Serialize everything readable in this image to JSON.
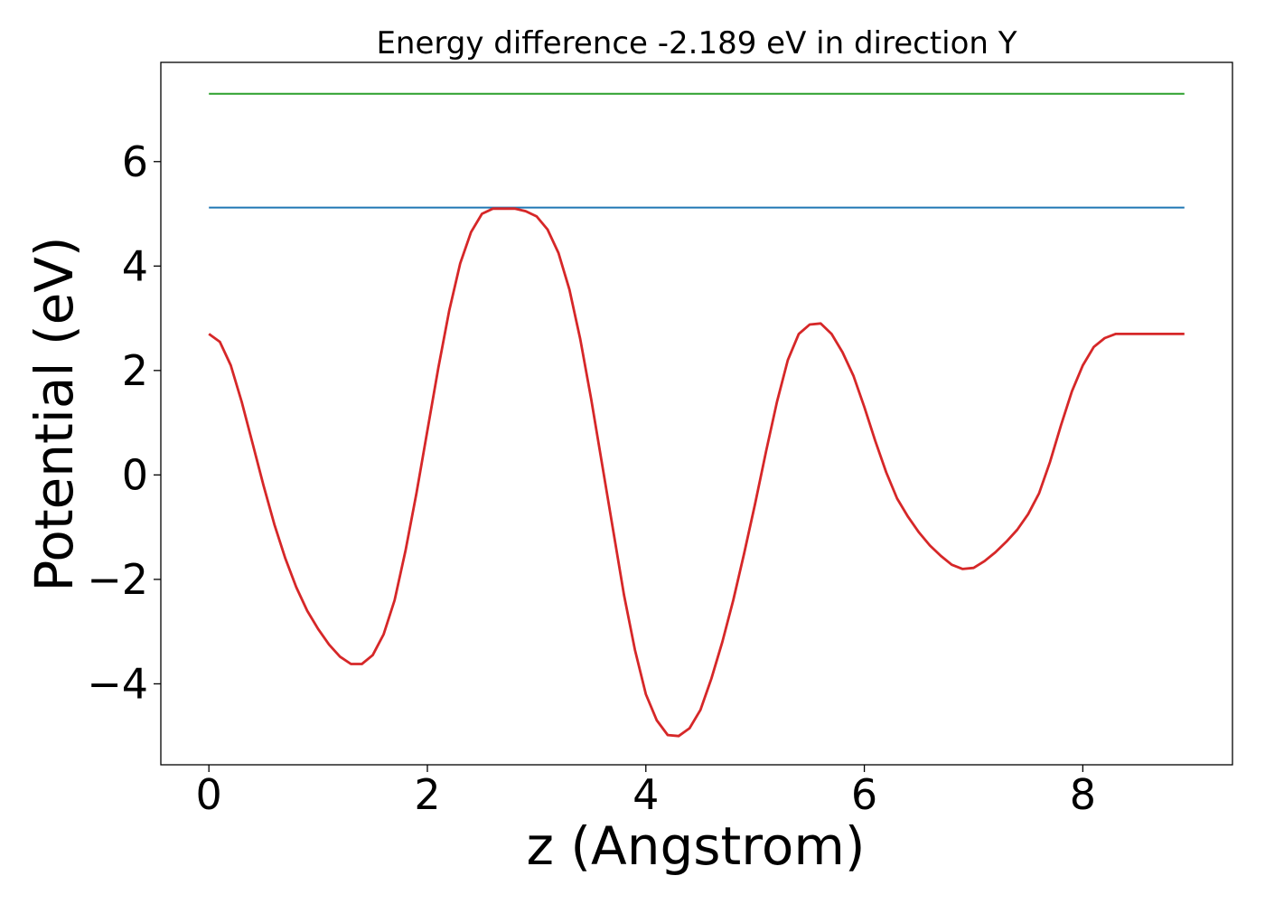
{
  "chart_data": {
    "type": "line",
    "title": "Energy difference -2.189 eV in direction Y",
    "xlabel": "z (Angstrom)",
    "ylabel": "Potential (eV)",
    "xlim": [
      -0.44,
      9.37
    ],
    "ylim": [
      -5.55,
      7.9
    ],
    "xticks": [
      0,
      2,
      4,
      6,
      8
    ],
    "yticks": [
      -4,
      -2,
      0,
      2,
      4,
      6
    ],
    "grid": false,
    "series": [
      {
        "color": "#2ca02c",
        "x": [
          0,
          8.93
        ],
        "y": [
          7.3,
          7.3
        ]
      },
      {
        "color": "#1f77b4",
        "x": [
          0,
          8.93
        ],
        "y": [
          5.12,
          5.12
        ]
      },
      {
        "color": "#d62728",
        "x": [
          0,
          0.1,
          0.2,
          0.3,
          0.4,
          0.5,
          0.6,
          0.7,
          0.8,
          0.9,
          1.0,
          1.1,
          1.2,
          1.3,
          1.4,
          1.5,
          1.6,
          1.7,
          1.8,
          1.9,
          2.0,
          2.1,
          2.2,
          2.3,
          2.4,
          2.5,
          2.6,
          2.7,
          2.8,
          2.9,
          3.0,
          3.1,
          3.2,
          3.3,
          3.4,
          3.5,
          3.6,
          3.7,
          3.8,
          3.9,
          4.0,
          4.1,
          4.2,
          4.3,
          4.4,
          4.5,
          4.6,
          4.7,
          4.8,
          4.9,
          5.0,
          5.1,
          5.2,
          5.3,
          5.4,
          5.5,
          5.6,
          5.7,
          5.8,
          5.9,
          6.0,
          6.1,
          6.2,
          6.3,
          6.4,
          6.5,
          6.6,
          6.7,
          6.8,
          6.9,
          7.0,
          7.1,
          7.2,
          7.3,
          7.4,
          7.5,
          7.6,
          7.7,
          7.8,
          7.9,
          8.0,
          8.1,
          8.2,
          8.3,
          8.4,
          8.5,
          8.6,
          8.7,
          8.8,
          8.93
        ],
        "y": [
          2.7,
          2.55,
          2.1,
          1.4,
          0.6,
          -0.2,
          -0.95,
          -1.6,
          -2.15,
          -2.6,
          -2.95,
          -3.25,
          -3.48,
          -3.62,
          -3.62,
          -3.45,
          -3.05,
          -2.4,
          -1.45,
          -0.35,
          0.85,
          2.05,
          3.15,
          4.05,
          4.65,
          5.0,
          5.1,
          5.1,
          5.1,
          5.05,
          4.95,
          4.7,
          4.25,
          3.55,
          2.6,
          1.45,
          0.2,
          -1.05,
          -2.3,
          -3.35,
          -4.2,
          -4.7,
          -4.98,
          -5.0,
          -4.85,
          -4.5,
          -3.9,
          -3.2,
          -2.4,
          -1.5,
          -0.55,
          0.45,
          1.4,
          2.2,
          2.7,
          2.88,
          2.9,
          2.7,
          2.35,
          1.9,
          1.3,
          0.65,
          0.05,
          -0.45,
          -0.8,
          -1.1,
          -1.35,
          -1.55,
          -1.72,
          -1.8,
          -1.78,
          -1.65,
          -1.48,
          -1.28,
          -1.05,
          -0.75,
          -0.35,
          0.25,
          0.95,
          1.6,
          2.1,
          2.45,
          2.62,
          2.7,
          2.7,
          2.7,
          2.7,
          2.7,
          2.7,
          2.7
        ]
      }
    ]
  }
}
